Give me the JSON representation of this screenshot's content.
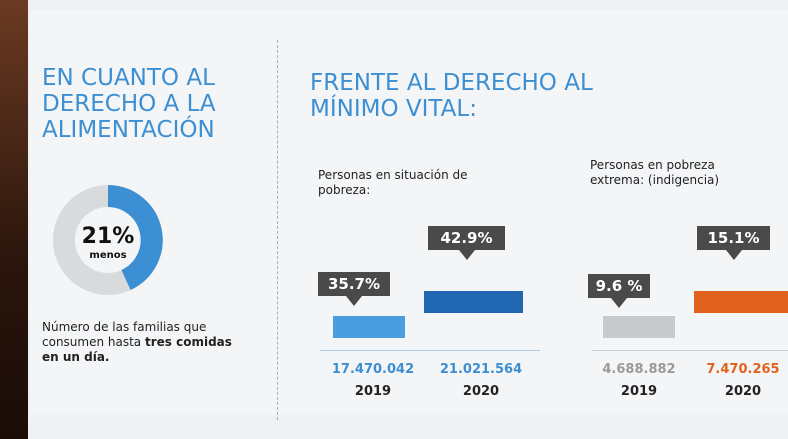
{
  "left": {
    "title": "EN CUANTO AL DERECHO A LA ALIMENTACIÓN",
    "donut_label": "21%",
    "donut_sub": "menos",
    "text": "Número de las familias que consumen hasta",
    "text_bold": "tres comidas en un día."
  },
  "right": {
    "title": "FRENTE AL DERECHO AL MÍNIMO VITAL:",
    "groups": [
      {
        "label": "Personas en situación de pobreza:",
        "items": [
          {
            "percent": "35.7%",
            "count": "17.470.042",
            "year": "2019"
          },
          {
            "percent": "42.9%",
            "count": "21.021.564",
            "year": "2020"
          }
        ]
      },
      {
        "label": "Personas en pobreza extrema: (indigencia)",
        "items": [
          {
            "percent": "9.6 %",
            "count": "4.688.882",
            "year": "2019"
          },
          {
            "percent": "15.1%",
            "count": "7.470.265",
            "year": "2020"
          }
        ]
      }
    ]
  }
}
